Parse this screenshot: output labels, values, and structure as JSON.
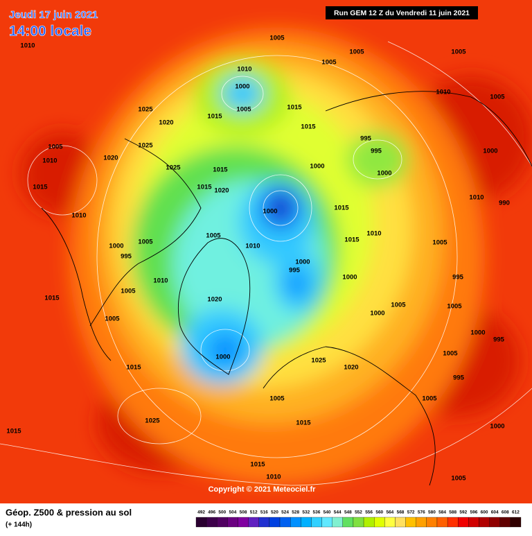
{
  "header": {
    "date": "Jeudi 17 juin 2021",
    "time": "14:00 locale",
    "run": "Run GEM 12 Z du Vendredi 11 juin 2021"
  },
  "copyright": "Copyright © 2021 Meteociel.fr",
  "footer": {
    "title": "Géop. Z500 & pression au sol",
    "lead": "(+ 144h)"
  },
  "scale": [
    {
      "value": 492,
      "color": "#2a0030"
    },
    {
      "value": 496,
      "color": "#3d004a"
    },
    {
      "value": 500,
      "color": "#500060"
    },
    {
      "value": 504,
      "color": "#6a0080"
    },
    {
      "value": 508,
      "color": "#8000a0"
    },
    {
      "value": 512,
      "color": "#6020c0"
    },
    {
      "value": 516,
      "color": "#2030d0"
    },
    {
      "value": 520,
      "color": "#0040e0"
    },
    {
      "value": 524,
      "color": "#0060f0"
    },
    {
      "value": 528,
      "color": "#0090ff"
    },
    {
      "value": 532,
      "color": "#00b0ff"
    },
    {
      "value": 536,
      "color": "#30d0ff"
    },
    {
      "value": 540,
      "color": "#60e8ff"
    },
    {
      "value": 544,
      "color": "#80f0d0"
    },
    {
      "value": 548,
      "color": "#60e060"
    },
    {
      "value": 552,
      "color": "#80e040"
    },
    {
      "value": 556,
      "color": "#b0f000"
    },
    {
      "value": 560,
      "color": "#e0ff00"
    },
    {
      "value": 564,
      "color": "#ffff40"
    },
    {
      "value": 568,
      "color": "#ffe060"
    },
    {
      "value": 572,
      "color": "#ffc000"
    },
    {
      "value": 576,
      "color": "#ffa000"
    },
    {
      "value": 580,
      "color": "#ff8000"
    },
    {
      "value": 584,
      "color": "#ff6000"
    },
    {
      "value": 588,
      "color": "#ff3000"
    },
    {
      "value": 592,
      "color": "#f00000"
    },
    {
      "value": 596,
      "color": "#d00000"
    },
    {
      "value": 600,
      "color": "#b00000"
    },
    {
      "value": 604,
      "color": "#900000"
    },
    {
      "value": 608,
      "color": "#600000"
    },
    {
      "value": 612,
      "color": "#300000"
    }
  ],
  "isobar_labels": [
    1010,
    1005,
    1005,
    1005,
    1005,
    1010,
    1000,
    1005,
    1015,
    1025,
    1020,
    1015,
    1015,
    995,
    995,
    1005,
    1010,
    1020,
    1025,
    1025,
    1015,
    1000,
    1000,
    1015,
    1015,
    1020,
    1000,
    1015,
    1010,
    1010,
    1015,
    1005,
    1005,
    1010,
    1000,
    995,
    1000,
    995,
    1010,
    1000,
    1005,
    1020,
    1015,
    1005,
    1000,
    1005,
    1000,
    1025,
    1020,
    1015,
    1005,
    1015,
    1025,
    1015,
    1015,
    1010,
    1010,
    1005,
    1000,
    1010,
    990,
    1005,
    995,
    1005,
    1000,
    995,
    1005,
    995,
    1005,
    1000,
    1005
  ]
}
